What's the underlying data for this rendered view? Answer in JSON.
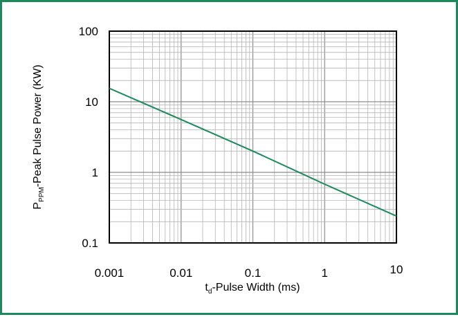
{
  "chart_data": {
    "type": "line",
    "title": "",
    "xlabel": {
      "prefix": "t",
      "subscript": "d",
      "text": "-Pulse Width (ms)"
    },
    "ylabel": {
      "prefix": "P",
      "subscript": "PPM",
      "text": "-Peak Pulse Power (KW)"
    },
    "x_scale": "log",
    "y_scale": "log",
    "xlim": [
      0.001,
      10
    ],
    "ylim": [
      0.1,
      100
    ],
    "x_ticks": [
      "0.001",
      "0.01",
      "0.1",
      "1",
      "10"
    ],
    "y_ticks": [
      "100",
      "10",
      "1",
      "0.1"
    ],
    "grid": true,
    "series": [
      {
        "color": "#1a8a5a",
        "x": [
          0.001,
          0.01,
          0.1,
          1,
          10
        ],
        "y": [
          15.5,
          5.6,
          2.0,
          0.68,
          0.24
        ]
      }
    ]
  },
  "colors": {
    "frame": "#1a8a5a",
    "line": "#1a8a5a",
    "grid": "#b4b4b4",
    "axis": "#000000"
  }
}
